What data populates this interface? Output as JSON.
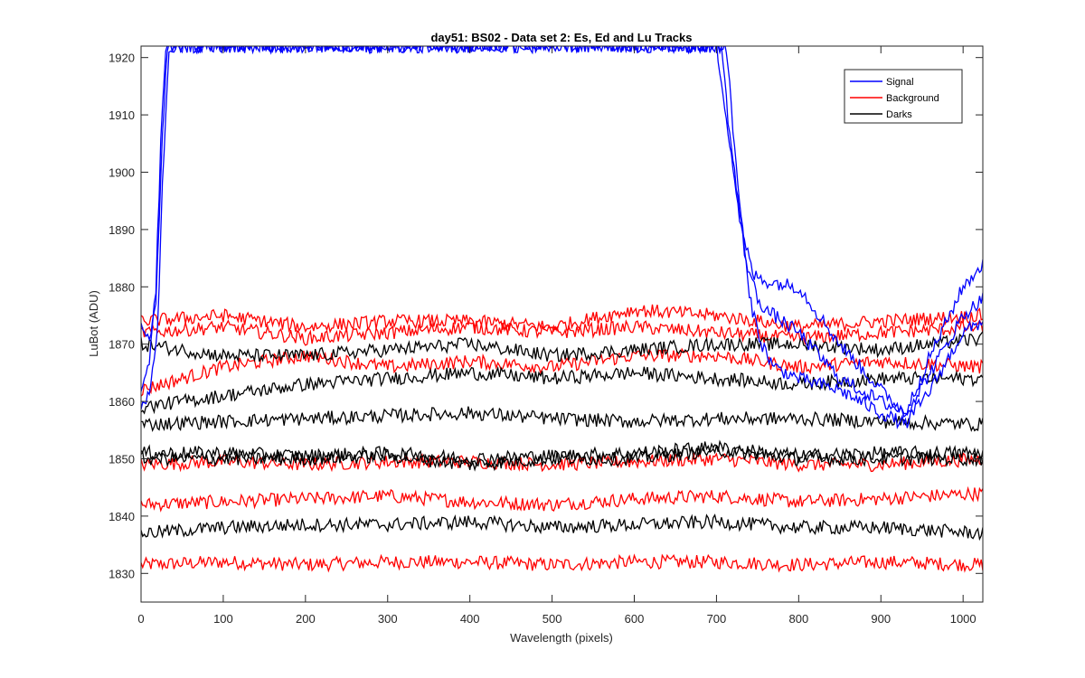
{
  "chart_data": {
    "type": "line",
    "title": "day51: BS02 - Data set 2: Es, Ed and Lu Tracks",
    "xlabel": "Wavelength (pixels)",
    "ylabel": "LuBot (ADU)",
    "xlim": [
      0,
      1024
    ],
    "ylim": [
      1825,
      1922
    ],
    "xticks": [
      0,
      100,
      200,
      300,
      400,
      500,
      600,
      700,
      800,
      900,
      1000
    ],
    "yticks": [
      1830,
      1840,
      1850,
      1860,
      1870,
      1880,
      1890,
      1900,
      1910,
      1920
    ],
    "xtick_labels": [
      "0",
      "100",
      "200",
      "300",
      "400",
      "500",
      "600",
      "700",
      "800",
      "900",
      "1000"
    ],
    "ytick_labels": [
      "1830",
      "1840",
      "1850",
      "1860",
      "1870",
      "1880",
      "1890",
      "1900",
      "1910",
      "1920"
    ],
    "grid": false,
    "legend_position": "top-right",
    "legend": [
      {
        "label": "Signal",
        "color": "#0000ff"
      },
      {
        "label": "Background",
        "color": "#ff0000"
      },
      {
        "label": "Darks",
        "color": "#000000"
      }
    ],
    "series": [
      {
        "group": "Background",
        "color": "#ff0000",
        "x": [
          0,
          100,
          200,
          300,
          400,
          500,
          600,
          700,
          800,
          900,
          1024
        ],
        "values": [
          1831.5,
          1832,
          1831.5,
          1832,
          1832,
          1831.5,
          1832,
          1832,
          1831.5,
          1832,
          1831.5
        ]
      },
      {
        "group": "Background",
        "color": "#ff0000",
        "x": [
          0,
          100,
          200,
          300,
          400,
          500,
          600,
          700,
          800,
          900,
          1024
        ],
        "values": [
          1842,
          1842.5,
          1843,
          1843.5,
          1842.5,
          1842,
          1843,
          1843.5,
          1842.5,
          1843,
          1844
        ]
      },
      {
        "group": "Background",
        "color": "#ff0000",
        "x": [
          0,
          100,
          200,
          300,
          400,
          500,
          600,
          700,
          800,
          900,
          1024
        ],
        "values": [
          1849,
          1849.5,
          1849,
          1849.5,
          1849.5,
          1849,
          1849.5,
          1850,
          1849,
          1849,
          1850
        ]
      },
      {
        "group": "Background",
        "color": "#ff0000",
        "x": [
          0,
          100,
          200,
          300,
          400,
          500,
          600,
          700,
          800,
          900,
          1024
        ],
        "values": [
          1862,
          1866,
          1868,
          1866,
          1867,
          1866,
          1868,
          1868,
          1866,
          1867,
          1866
        ]
      },
      {
        "group": "Background",
        "color": "#ff0000",
        "x": [
          0,
          100,
          200,
          300,
          400,
          500,
          600,
          700,
          800,
          900,
          1024
        ],
        "values": [
          1872,
          1873,
          1871,
          1872,
          1873,
          1872,
          1873,
          1872,
          1871,
          1872,
          1873
        ]
      },
      {
        "group": "Background",
        "color": "#ff0000",
        "x": [
          0,
          100,
          200,
          300,
          400,
          500,
          600,
          700,
          800,
          900,
          1024
        ],
        "values": [
          1874,
          1875,
          1873,
          1874,
          1874,
          1873,
          1876,
          1875,
          1873,
          1874,
          1875
        ]
      },
      {
        "group": "Darks",
        "color": "#000000",
        "x": [
          0,
          100,
          200,
          300,
          400,
          500,
          600,
          700,
          800,
          900,
          1024
        ],
        "values": [
          1837,
          1838,
          1838.5,
          1838.5,
          1839,
          1838,
          1838.5,
          1839,
          1838,
          1838,
          1837
        ]
      },
      {
        "group": "Darks",
        "color": "#000000",
        "x": [
          0,
          100,
          200,
          300,
          400,
          500,
          600,
          700,
          800,
          900,
          1024
        ],
        "values": [
          1850,
          1850,
          1850,
          1850.5,
          1849,
          1850,
          1850,
          1851.5,
          1850,
          1850,
          1850
        ]
      },
      {
        "group": "Darks",
        "color": "#000000",
        "x": [
          0,
          100,
          200,
          300,
          400,
          500,
          600,
          700,
          800,
          900,
          1024
        ],
        "values": [
          1851,
          1851,
          1850.5,
          1851,
          1850,
          1850.5,
          1851,
          1852,
          1850.5,
          1851,
          1851
        ]
      },
      {
        "group": "Darks",
        "color": "#000000",
        "x": [
          0,
          100,
          200,
          300,
          400,
          500,
          600,
          700,
          800,
          900,
          1024
        ],
        "values": [
          1856,
          1856.5,
          1857,
          1857.5,
          1858,
          1857,
          1856.5,
          1857,
          1857,
          1856.5,
          1856
        ]
      },
      {
        "group": "Darks",
        "color": "#000000",
        "x": [
          0,
          100,
          200,
          300,
          400,
          500,
          600,
          700,
          800,
          900,
          1024
        ],
        "values": [
          1859,
          1861,
          1863,
          1864,
          1865,
          1864,
          1865,
          1864,
          1863,
          1864,
          1864
        ]
      },
      {
        "group": "Darks",
        "color": "#000000",
        "x": [
          0,
          100,
          200,
          300,
          400,
          500,
          600,
          700,
          800,
          900,
          1024
        ],
        "values": [
          1870,
          1868,
          1868,
          1869,
          1870,
          1868,
          1869,
          1870,
          1870,
          1869,
          1871
        ]
      },
      {
        "group": "Signal",
        "color": "#0000ff",
        "x": [
          0,
          10,
          18,
          24,
          30,
          40,
          700,
          710,
          730,
          745,
          760,
          800,
          850,
          900,
          930,
          960,
          1000,
          1024
        ],
        "values": [
          1862,
          1866,
          1880,
          1905,
          1922,
          1922,
          1922,
          1912,
          1890,
          1882,
          1881,
          1880,
          1870,
          1862,
          1858,
          1865,
          1875,
          1878
        ]
      },
      {
        "group": "Signal",
        "color": "#0000ff",
        "x": [
          0,
          10,
          18,
          24,
          32,
          42,
          706,
          715,
          735,
          750,
          760,
          800,
          850,
          900,
          930,
          960,
          1000,
          1024
        ],
        "values": [
          1874,
          1870,
          1877,
          1900,
          1922,
          1922,
          1922,
          1908,
          1885,
          1878,
          1876,
          1872,
          1864,
          1860,
          1858,
          1868,
          1880,
          1884
        ]
      },
      {
        "group": "Signal",
        "color": "#0000ff",
        "x": [
          0,
          10,
          20,
          26,
          34,
          44,
          712,
          722,
          740,
          755,
          770,
          800,
          850,
          900,
          930,
          960,
          1000,
          1024
        ],
        "values": [
          1858,
          1862,
          1872,
          1898,
          1922,
          1922,
          1922,
          1904,
          1878,
          1870,
          1866,
          1864,
          1862,
          1858,
          1856,
          1862,
          1872,
          1874
        ]
      }
    ]
  }
}
